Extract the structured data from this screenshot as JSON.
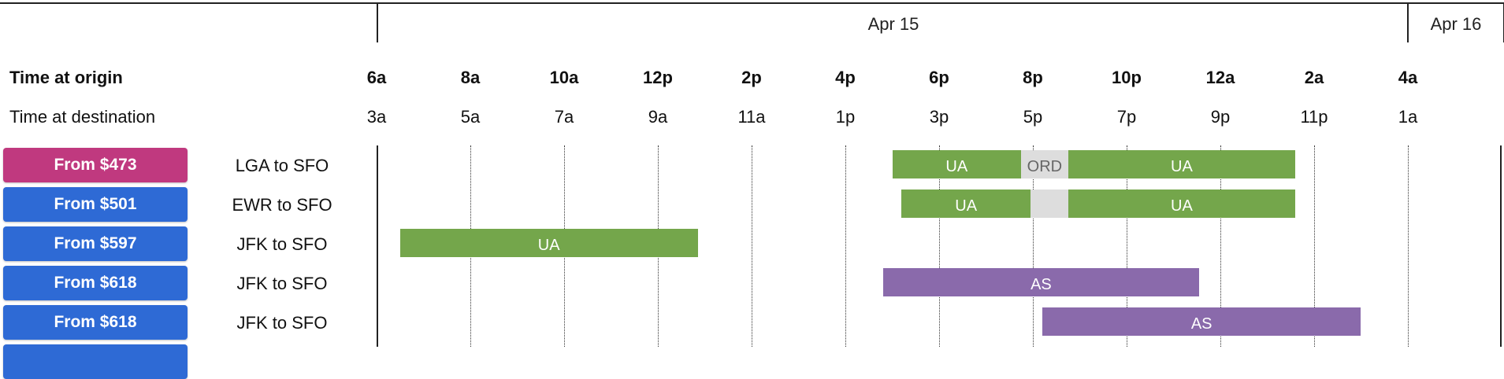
{
  "colors": {
    "featured_price": "#c0397f",
    "price": "#2e6ad5",
    "ua": "#74a64b",
    "as": "#8a6aab",
    "layover": "#dddddd"
  },
  "days": [
    {
      "label": "Apr 15"
    },
    {
      "label": "Apr 16"
    }
  ],
  "header": {
    "origin_label": "Time at origin",
    "destination_label": "Time at destination"
  },
  "origin_ticks": [
    "6a",
    "8a",
    "10a",
    "12p",
    "2p",
    "4p",
    "6p",
    "8p",
    "10p",
    "12a",
    "2a",
    "4a"
  ],
  "destination_ticks": [
    "3a",
    "5a",
    "7a",
    "9a",
    "11a",
    "1p",
    "3p",
    "5p",
    "7p",
    "9p",
    "11p",
    "1a"
  ],
  "flights": [
    {
      "price_label": "From $473",
      "featured": true,
      "route": "LGA to SFO",
      "segments": [
        {
          "type": "flight",
          "airline": "UA",
          "start": 17.0,
          "end": 19.75
        },
        {
          "type": "layover",
          "label": "ORD",
          "start": 19.75,
          "end": 20.75
        },
        {
          "type": "flight",
          "airline": "UA",
          "start": 20.75,
          "end": 25.6
        }
      ]
    },
    {
      "price_label": "From $501",
      "featured": false,
      "route": "EWR to SFO",
      "segments": [
        {
          "type": "flight",
          "airline": "UA",
          "start": 17.2,
          "end": 19.95
        },
        {
          "type": "layover",
          "label": "",
          "start": 19.95,
          "end": 20.75
        },
        {
          "type": "flight",
          "airline": "UA",
          "start": 20.75,
          "end": 25.6
        }
      ]
    },
    {
      "price_label": "From $597",
      "featured": false,
      "route": "JFK to SFO",
      "segments": [
        {
          "type": "flight",
          "airline": "UA",
          "start": 6.5,
          "end": 12.85
        }
      ]
    },
    {
      "price_label": "From $618",
      "featured": false,
      "route": "JFK to SFO",
      "segments": [
        {
          "type": "flight",
          "airline": "AS",
          "start": 16.8,
          "end": 23.55
        }
      ]
    },
    {
      "price_label": "From $618",
      "featured": false,
      "route": "JFK to SFO",
      "segments": [
        {
          "type": "flight",
          "airline": "AS",
          "start": 20.2,
          "end": 27.0
        }
      ]
    },
    {
      "price_label": "",
      "featured": false,
      "route": "",
      "segments": []
    }
  ]
}
